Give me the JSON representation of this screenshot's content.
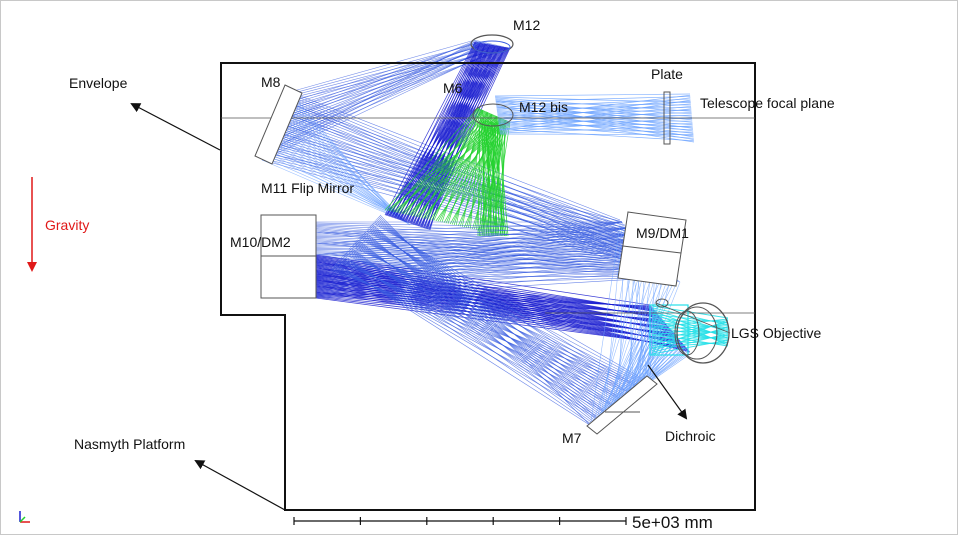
{
  "diagram": {
    "labels": {
      "m12": "M12",
      "m6": "M6",
      "m12bis": "M12 bis",
      "plate": "Plate",
      "telescope_focal_plane": "Telescope focal plane",
      "m8": "M8",
      "envelope": "Envelope",
      "m11": "M11 Flip Mirror",
      "gravity": "Gravity",
      "m10": "M10/DM2",
      "m9": "M9/DM1",
      "lgs": "LGS Objective",
      "m7": "M7",
      "dichroic": "Dichroic",
      "nasmyth": "Nasmyth Platform"
    },
    "scale_bar": {
      "label": "5e+03 mm",
      "ticks": 6
    },
    "colors": {
      "outline": "#111111",
      "ray_blue": "#3a5de0",
      "ray_light": "#6fa4ff",
      "ray_dark": "#1b1fd0",
      "ray_green": "#22d12e",
      "ray_cyan": "#26e0e8",
      "gravity": "#e01818"
    },
    "icons": {
      "axis_triad": "xyz-axis-icon"
    }
  }
}
